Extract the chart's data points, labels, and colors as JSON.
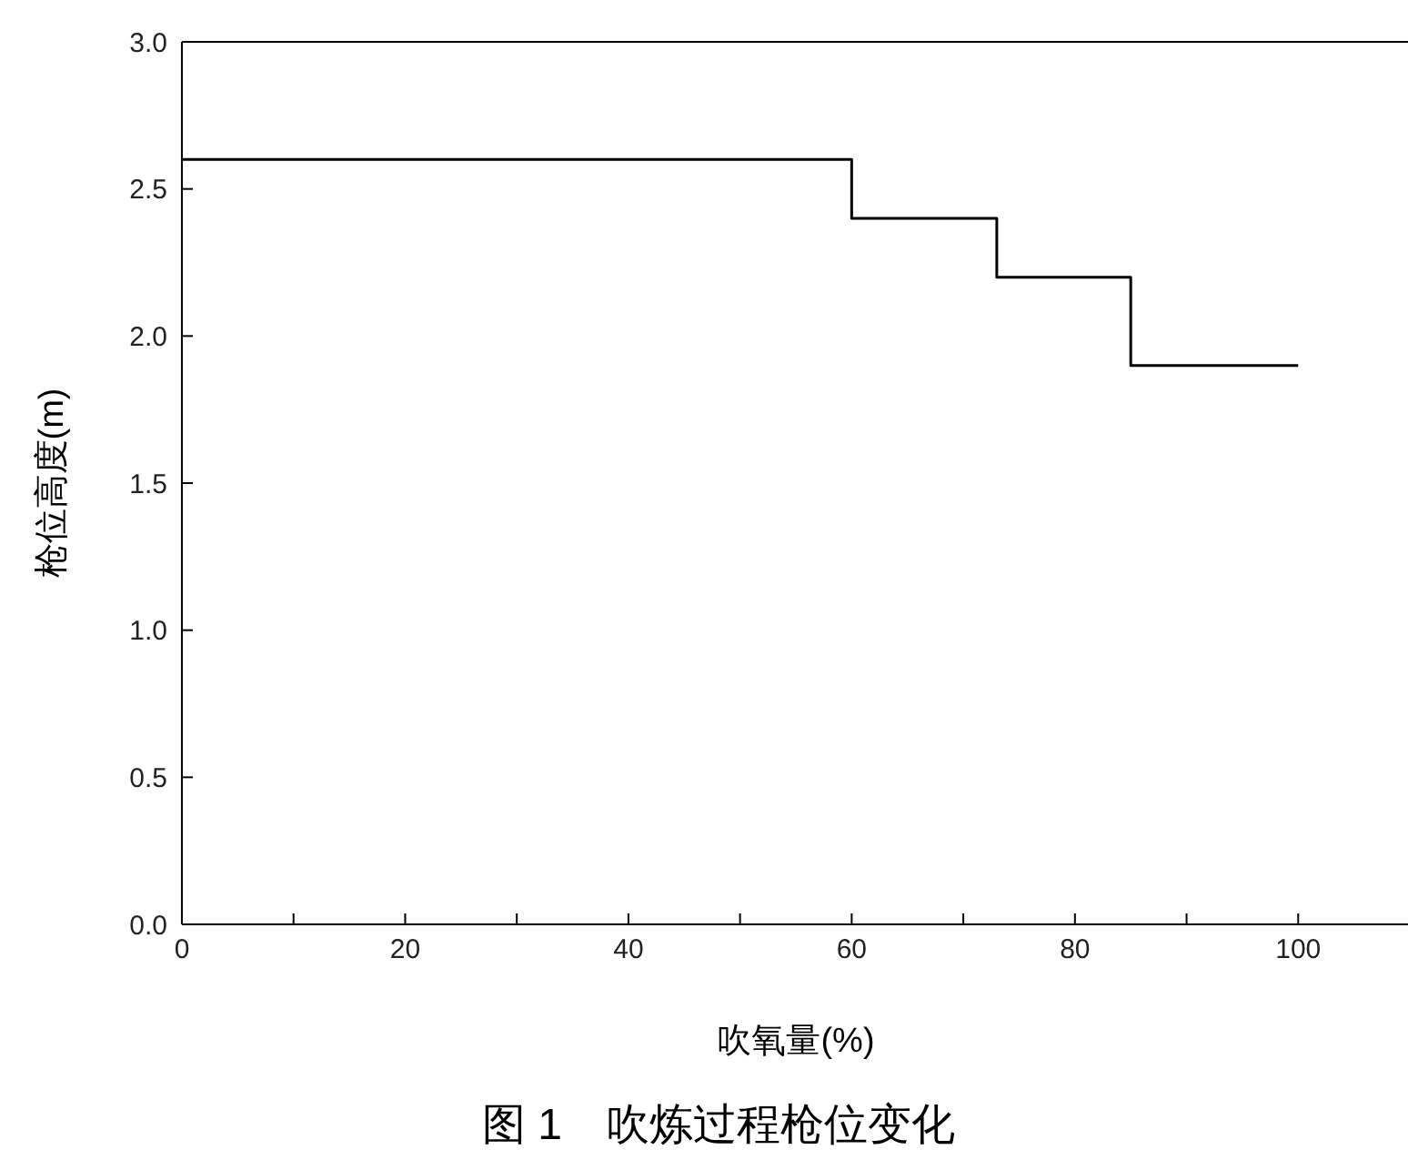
{
  "chart_data": {
    "type": "step",
    "title": "图 1　吹炼过程枪位变化",
    "xlabel": "吹氧量(%)",
    "ylabel": "枪位高度(m)",
    "x": [
      0,
      60,
      73,
      85,
      100
    ],
    "series": [
      {
        "color": "#000000",
        "values": [
          2.6,
          2.4,
          2.2,
          1.9,
          1.9
        ]
      }
    ],
    "xlim": [
      0,
      110
    ],
    "xticks": [
      0,
      {
        "value": 10,
        "label": null
      },
      20,
      {
        "value": 30,
        "label": null
      },
      40,
      {
        "value": 50,
        "label": null
      },
      60,
      {
        "value": 70,
        "label": null
      },
      80,
      {
        "value": 90,
        "label": null
      },
      100
    ],
    "ylim": [
      0,
      3
    ],
    "yticks": [
      {
        "value": 0,
        "label": "0.0"
      },
      {
        "value": 0.5,
        "label": "0.5"
      },
      {
        "value": 1,
        "label": "1.0"
      },
      {
        "value": 1.5,
        "label": "1.5"
      },
      {
        "value": 2,
        "label": "2.0"
      },
      {
        "value": 2.5,
        "label": "2.5"
      },
      {
        "value": 3,
        "label": "3.0"
      }
    ],
    "grid": false,
    "legend": false,
    "marker": "none",
    "line_style": "solid"
  }
}
